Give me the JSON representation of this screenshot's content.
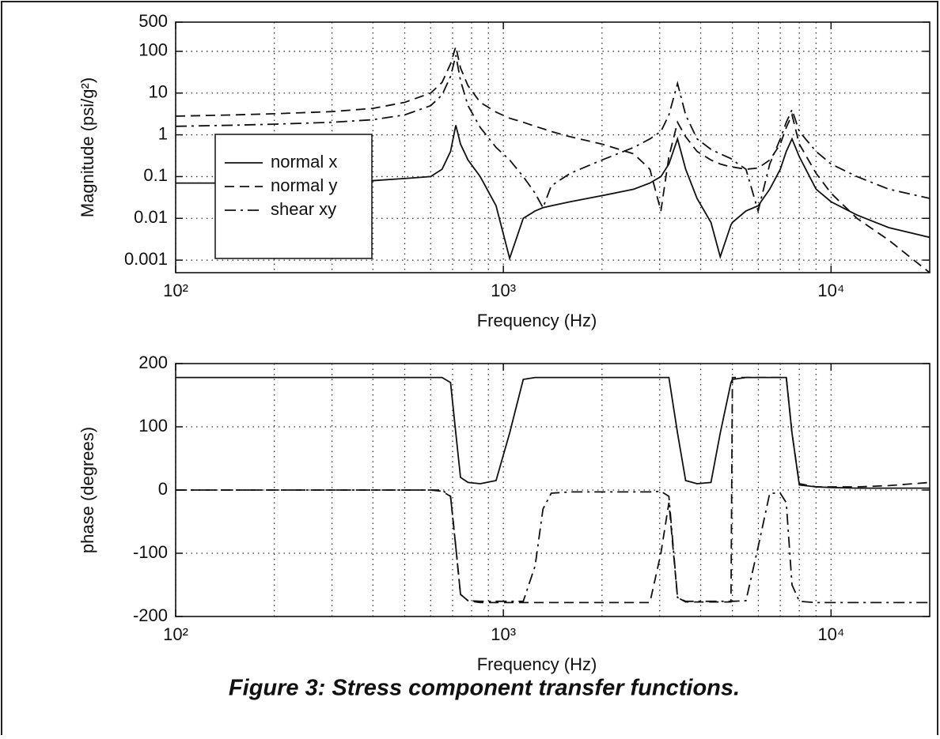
{
  "caption": "Figure 3: Stress component transfer functions.",
  "chart_data": [
    {
      "type": "line",
      "xlog": true,
      "ylog": true,
      "grid": true,
      "minor_grid": "x",
      "legend": "lower left",
      "color": "#111111",
      "xlabel": "Frequency (Hz)",
      "ylabel": "Magnitude (psi/g²)",
      "xlim": [
        100,
        20000
      ],
      "ylim": [
        0.0005,
        500
      ],
      "xticks": [
        {
          "value": 100,
          "label": "10²"
        },
        {
          "value": 1000,
          "label": "10³"
        },
        {
          "value": 10000,
          "label": "10⁴"
        }
      ],
      "yticks": [
        0.001,
        0.01,
        0.1,
        1,
        10,
        100,
        500
      ],
      "x": [
        100,
        150,
        200,
        300,
        400,
        500,
        600,
        650,
        690,
        716,
        740,
        780,
        850,
        950,
        1045,
        1150,
        1250,
        1321,
        1400,
        1600,
        2000,
        2500,
        2800,
        3025,
        3200,
        3400,
        3600,
        3900,
        4300,
        4590,
        4950,
        5000,
        5500,
        5990,
        6500,
        7000,
        7300,
        7600,
        8000,
        9000,
        10000,
        12000,
        15000,
        20000
      ],
      "series": [
        {
          "name": "normal x",
          "line_style": "solid",
          "values": [
            0.07,
            0.07,
            0.072,
            0.075,
            0.08,
            0.09,
            0.1,
            0.15,
            0.4,
            1.7,
            0.6,
            0.25,
            0.1,
            0.02,
            0.0011,
            0.01,
            0.015,
            0.018,
            0.02,
            0.025,
            0.035,
            0.05,
            0.07,
            0.1,
            0.2,
            0.8,
            0.15,
            0.03,
            0.008,
            0.0012,
            0.007,
            0.008,
            0.015,
            0.02,
            0.05,
            0.15,
            0.4,
            0.8,
            0.3,
            0.05,
            0.025,
            0.012,
            0.006,
            0.0035
          ]
        },
        {
          "name": "normal y",
          "line_style": "dashed",
          "values": [
            2.8,
            3.0,
            3.2,
            3.6,
            4.3,
            6,
            10,
            18,
            50,
            130,
            40,
            15,
            6,
            3.5,
            2.5,
            2,
            1.6,
            1.4,
            1.2,
            0.9,
            0.6,
            0.35,
            0.15,
            0.015,
            0.3,
            2,
            0.9,
            0.4,
            0.25,
            0.2,
            0.17,
            0.17,
            0.15,
            0.16,
            0.25,
            0.6,
            1.5,
            3,
            0.6,
            0.12,
            0.04,
            0.01,
            0.003,
            0.0005
          ]
        },
        {
          "name": "shear xy",
          "line_style": "dashdot",
          "values": [
            1.6,
            1.7,
            1.8,
            2.0,
            2.3,
            3,
            5,
            9,
            25,
            80,
            20,
            5,
            1.5,
            0.5,
            0.25,
            0.1,
            0.04,
            0.018,
            0.06,
            0.12,
            0.25,
            0.5,
            0.8,
            1.2,
            3,
            17,
            3,
            0.8,
            0.45,
            0.35,
            0.27,
            0.25,
            0.15,
            0.015,
            0.2,
            0.8,
            2,
            4,
            1.2,
            0.4,
            0.2,
            0.1,
            0.05,
            0.03
          ]
        }
      ]
    },
    {
      "type": "line",
      "xlog": true,
      "ylog": false,
      "grid": true,
      "minor_grid": "x",
      "color": "#111111",
      "xlabel": "Frequency (Hz)",
      "ylabel": "phase (degrees)",
      "xlim": [
        100,
        20000
      ],
      "ylim": [
        -200,
        200
      ],
      "xticks": [
        {
          "value": 100,
          "label": "10²"
        },
        {
          "value": 1000,
          "label": "10³"
        },
        {
          "value": 10000,
          "label": "10⁴"
        }
      ],
      "yticks": [
        -200,
        -100,
        0,
        100,
        200
      ],
      "x": [
        100,
        150,
        200,
        300,
        400,
        500,
        600,
        650,
        690,
        716,
        740,
        780,
        850,
        950,
        1045,
        1150,
        1250,
        1321,
        1400,
        1600,
        2000,
        2500,
        2800,
        3025,
        3200,
        3400,
        3600,
        3900,
        4300,
        4590,
        4950,
        5000,
        5500,
        5990,
        6500,
        7000,
        7300,
        7600,
        8000,
        9000,
        10000,
        12000,
        15000,
        20000
      ],
      "series": [
        {
          "line_style": "solid",
          "values": [
            178,
            178,
            178,
            178,
            178,
            178,
            178,
            178,
            170,
            90,
            20,
            12,
            10,
            15,
            90,
            175,
            178,
            178,
            178,
            178,
            178,
            178,
            178,
            178,
            178,
            90,
            15,
            10,
            12,
            90,
            170,
            175,
            178,
            178,
            178,
            178,
            178,
            90,
            8,
            5,
            4,
            3,
            3,
            3
          ]
        },
        {
          "line_style": "dashed",
          "values": [
            0,
            0,
            0,
            0,
            0,
            0,
            0,
            -2,
            -10,
            -90,
            -165,
            -175,
            -178,
            -178,
            -178,
            -178,
            -178,
            -178,
            -178,
            -178,
            -178,
            -178,
            -178,
            -100,
            -20,
            -170,
            -177,
            -177,
            -177,
            -177,
            -177,
            178,
            178,
            178,
            178,
            178,
            178,
            90,
            10,
            5,
            5,
            5,
            7,
            12
          ]
        },
        {
          "line_style": "dashdot",
          "values": [
            0,
            0,
            0,
            0,
            0,
            0,
            0,
            0,
            -10,
            -90,
            -165,
            -175,
            -176,
            -176,
            -176,
            -176,
            -120,
            -30,
            -5,
            -3,
            -3,
            -3,
            -3,
            -2,
            -10,
            -170,
            -176,
            -176,
            -176,
            -176,
            -176,
            -176,
            -175,
            -90,
            -5,
            -5,
            -20,
            -150,
            -176,
            -178,
            -178,
            -178,
            -178,
            -178
          ]
        }
      ]
    }
  ]
}
